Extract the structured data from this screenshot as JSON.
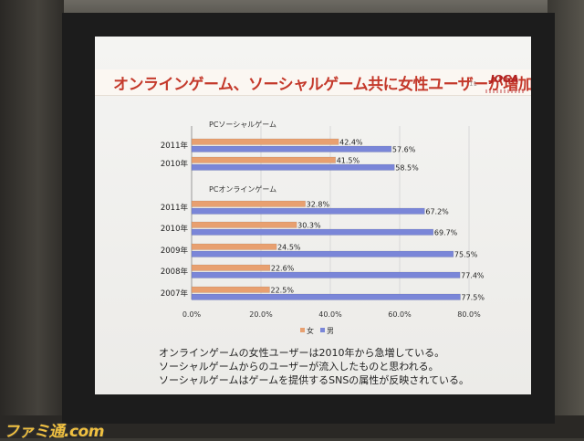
{
  "slide": {
    "title": "オンラインゲーム、ソーシャルゲーム共に女性ユーザーが増加",
    "page_number": "11",
    "logo": "JOGA"
  },
  "chart_data": {
    "type": "bar",
    "orientation": "horizontal",
    "groups": [
      {
        "label": "PCソーシャルゲーム",
        "categories": [
          "2011年",
          "2010年"
        ],
        "series": [
          {
            "name": "女",
            "values": [
              42.4,
              41.5
            ],
            "labels": [
              "42.4%",
              "41.5%"
            ]
          },
          {
            "name": "男",
            "values": [
              57.6,
              58.5
            ],
            "labels": [
              "57.6%",
              "58.5%"
            ]
          }
        ]
      },
      {
        "label": "PCオンラインゲーム",
        "categories": [
          "2011年",
          "2010年",
          "2009年",
          "2008年",
          "2007年"
        ],
        "series": [
          {
            "name": "女",
            "values": [
              32.8,
              30.3,
              24.5,
              22.6,
              22.5
            ],
            "labels": [
              "32.8%",
              "30.3%",
              "24.5%",
              "22.6%",
              "22.5%"
            ]
          },
          {
            "name": "男",
            "values": [
              67.2,
              69.7,
              75.5,
              77.4,
              77.5
            ],
            "labels": [
              "67.2%",
              "69.7%",
              "75.5%",
              "77.4%",
              "77.5%"
            ]
          }
        ]
      }
    ],
    "x_ticks": [
      "0.0%",
      "20.0%",
      "40.0%",
      "60.0%",
      "80.0%"
    ],
    "xlim": [
      0,
      80
    ],
    "legend": [
      "女",
      "男"
    ],
    "legend_position": "bottom",
    "colors": {
      "女": "#e8a070",
      "男": "#7a86d8"
    }
  },
  "captions": [
    "オンラインゲームの女性ユーザーは2010年から急増している。",
    "ソーシャルゲームからのユーザーが流入したものと思われる。",
    "ソーシャルゲームはゲームを提供するSNSの属性が反映されている。"
  ],
  "watermark": "ファミ通.com"
}
